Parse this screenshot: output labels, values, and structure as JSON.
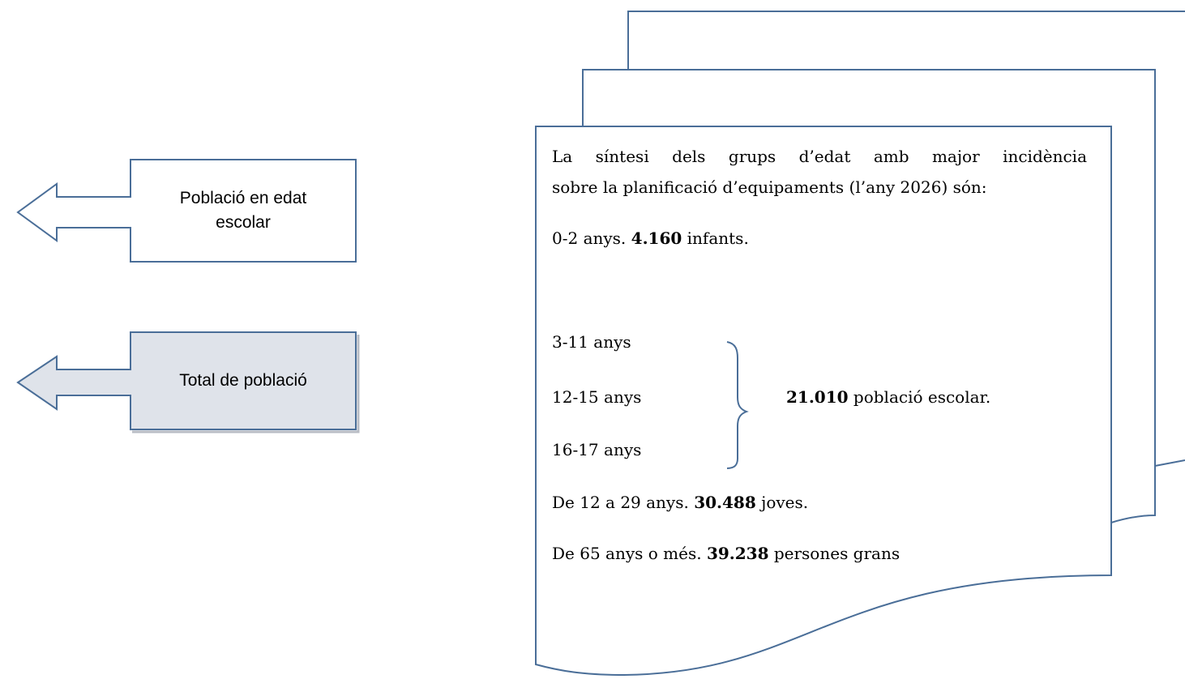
{
  "callouts": {
    "school_population": "Població en edat escolar",
    "total_population": "Total de població"
  },
  "document": {
    "intro_line1": "La síntesi dels grups d’edat amb major incidència",
    "intro_line2": "sobre la planificació d’equipaments (l’any 2026) són:",
    "infants": {
      "prefix": "0-2 anys. ",
      "value": "4.160",
      "suffix": " infants."
    },
    "school_groups": [
      "3-11 anys",
      "12-15 anys",
      "16-17 anys"
    ],
    "school_total": {
      "value": "21.010",
      "suffix": " població escolar."
    },
    "youth": {
      "prefix": "De 12 a 29 anys. ",
      "value": "30.488",
      "suffix": " joves."
    },
    "elderly": {
      "prefix": "De 65 anys o més. ",
      "value": "39.238",
      "suffix": " persones grans"
    }
  },
  "colors": {
    "outline": "#4a6e98",
    "highlight_fill": "#dfe3ea",
    "text": "#000000"
  }
}
